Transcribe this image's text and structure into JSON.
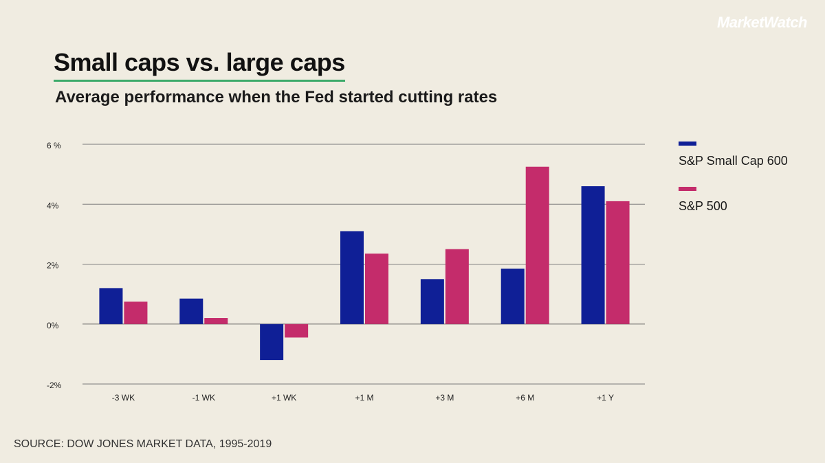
{
  "brand": "MarketWatch",
  "title": "Small caps vs. large caps",
  "subtitle": "Average performance when the Fed started cutting rates",
  "source": "SOURCE: DOW JONES MARKET DATA, 1995-2019",
  "colors": {
    "background": "#f0ece1",
    "accent_underline": "#3caa6a",
    "small_cap": "#0f1f96",
    "sp500": "#c42c6b"
  },
  "chart_data": {
    "type": "bar",
    "title": "Small caps vs. large caps",
    "subtitle": "Average performance when the Fed started cutting rates",
    "xlabel": "",
    "ylabel": "",
    "categories": [
      "-3 WK",
      "-1 WK",
      "+1 WK",
      "+1 M",
      "+3 M",
      "+6 M",
      "+1 Y"
    ],
    "series": [
      {
        "name": "S&P Small Cap 600",
        "color": "#0f1f96",
        "values": [
          1.2,
          0.85,
          -1.2,
          3.1,
          1.5,
          1.85,
          4.6
        ]
      },
      {
        "name": "S&P 500",
        "color": "#c42c6b",
        "values": [
          0.75,
          0.2,
          -0.45,
          2.35,
          2.5,
          5.25,
          4.1
        ]
      }
    ],
    "ylim": [
      -2,
      6
    ],
    "yticks": [
      -2,
      0,
      2,
      4,
      6
    ],
    "ytick_labels": [
      "-2%",
      "0%",
      "2%",
      "4%",
      "6 %"
    ],
    "grid": true,
    "legend_position": "right"
  }
}
